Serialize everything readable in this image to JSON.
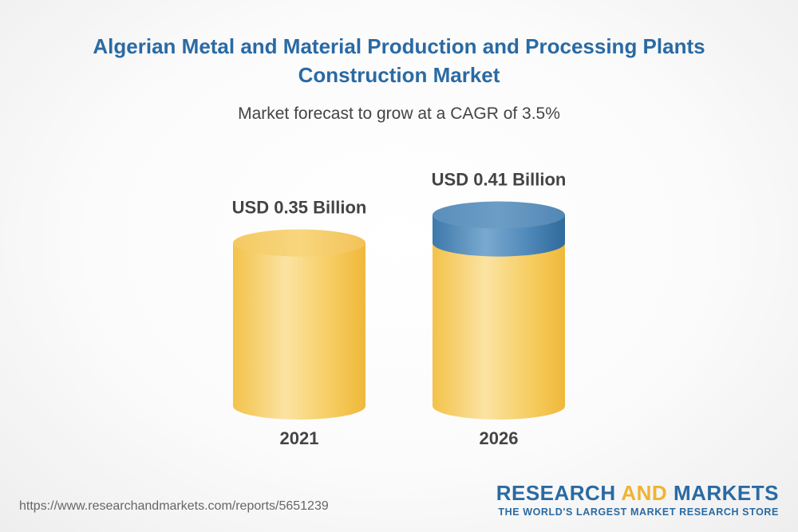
{
  "header": {
    "title_line1": "Algerian Metal and Material Production and Processing Plants",
    "title_line2": "Construction Market",
    "subtitle": "Market forecast to grow at a CAGR of 3.5%"
  },
  "chart_data": {
    "type": "bar",
    "style": "3d-cylinder",
    "categories": [
      "2021",
      "2026"
    ],
    "values": [
      0.35,
      0.41
    ],
    "value_labels": [
      "USD 0.35 Billion",
      "USD 0.41 Billion"
    ],
    "unit": "USD Billion",
    "cagr_percent": 3.5,
    "grid": false,
    "legend": "none",
    "colors": {
      "base": "#f5c445",
      "growth": "#3f7fb0"
    }
  },
  "footer": {
    "url": "https://www.researchandmarkets.com/reports/5651239",
    "brand_part1": "RESEARCH ",
    "brand_part2": "AND",
    "brand_part3": " MARKETS",
    "tagline": "THE WORLD'S LARGEST MARKET RESEARCH STORE"
  }
}
